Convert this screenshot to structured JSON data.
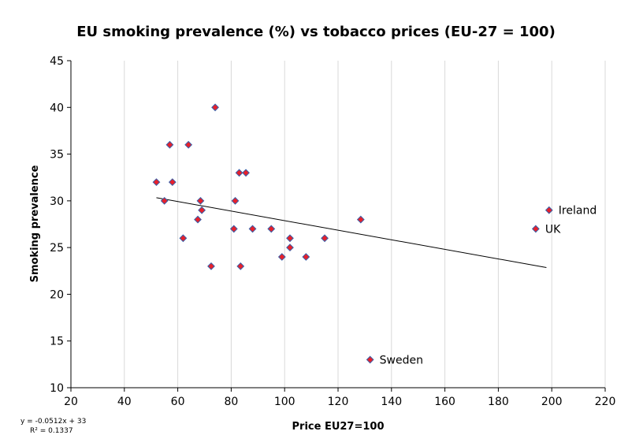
{
  "chart_data": {
    "type": "scatter",
    "title": "EU smoking  prevalence (%) vs tobacco prices (EU-27 = 100)",
    "xlabel": "Price EU27=100",
    "ylabel": "Smoking prevalence",
    "xlim": [
      20,
      220
    ],
    "ylim": [
      10,
      45
    ],
    "xticks": [
      "20",
      "40",
      "60",
      "80",
      "100",
      "120",
      "140",
      "160",
      "180",
      "200",
      "220"
    ],
    "yticks": [
      "10",
      "15",
      "20",
      "25",
      "30",
      "35",
      "40",
      "45"
    ],
    "grid": "vertical",
    "points": [
      {
        "x": 52,
        "y": 32
      },
      {
        "x": 55,
        "y": 30
      },
      {
        "x": 57,
        "y": 36
      },
      {
        "x": 58,
        "y": 32
      },
      {
        "x": 62,
        "y": 26
      },
      {
        "x": 64,
        "y": 36
      },
      {
        "x": 67.5,
        "y": 28
      },
      {
        "x": 68.5,
        "y": 30
      },
      {
        "x": 69,
        "y": 29
      },
      {
        "x": 72.5,
        "y": 23
      },
      {
        "x": 74,
        "y": 40
      },
      {
        "x": 81,
        "y": 27
      },
      {
        "x": 81.5,
        "y": 30
      },
      {
        "x": 83,
        "y": 33
      },
      {
        "x": 83.5,
        "y": 23
      },
      {
        "x": 85.5,
        "y": 33
      },
      {
        "x": 88,
        "y": 27
      },
      {
        "x": 95,
        "y": 27
      },
      {
        "x": 99,
        "y": 24
      },
      {
        "x": 102,
        "y": 26
      },
      {
        "x": 102,
        "y": 25
      },
      {
        "x": 108,
        "y": 24
      },
      {
        "x": 115,
        "y": 26
      },
      {
        "x": 128.5,
        "y": 28
      },
      {
        "x": 132,
        "y": 13,
        "label": "Sweden"
      },
      {
        "x": 194,
        "y": 27,
        "label": "UK"
      },
      {
        "x": 199,
        "y": 29,
        "label": "Ireland"
      }
    ],
    "trendline": {
      "x_range": [
        52,
        198
      ],
      "equation": "y = -0.0512x + 33",
      "r_squared": "R² = 0.1337"
    },
    "colors": {
      "marker_fill": "#e8202a",
      "marker_stroke": "#3a5fa8",
      "trendline": "#000000",
      "grid": "#d9d9d9",
      "axis": "#000000"
    }
  }
}
